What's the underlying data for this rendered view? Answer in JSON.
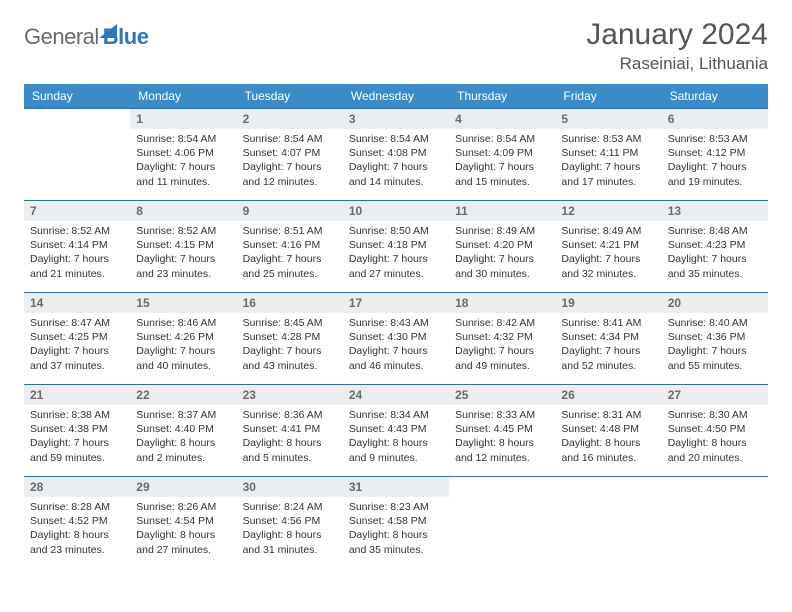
{
  "brand": {
    "word1": "General",
    "word2": "Blue"
  },
  "title": "January 2024",
  "location": "Raseiniai, Lithuania",
  "colors": {
    "header_bg": "#3b8bc9",
    "row_border": "#2f6fa8",
    "daynum_bg": "#ebeef1",
    "text": "#333333",
    "muted": "#6a6a6a",
    "brand_blue": "#2f77bb",
    "background": "#ffffff"
  },
  "typography": {
    "title_fontsize": 30,
    "location_fontsize": 17,
    "header_fontsize": 12,
    "daynum_fontsize": 12,
    "body_fontsize": 10.5
  },
  "columns": [
    "Sunday",
    "Monday",
    "Tuesday",
    "Wednesday",
    "Thursday",
    "Friday",
    "Saturday"
  ],
  "weeks": [
    [
      {
        "n": "",
        "sr": "",
        "ss": "",
        "d1": "",
        "d2": "",
        "empty": true
      },
      {
        "n": "1",
        "sr": "Sunrise: 8:54 AM",
        "ss": "Sunset: 4:06 PM",
        "d1": "Daylight: 7 hours",
        "d2": "and 11 minutes."
      },
      {
        "n": "2",
        "sr": "Sunrise: 8:54 AM",
        "ss": "Sunset: 4:07 PM",
        "d1": "Daylight: 7 hours",
        "d2": "and 12 minutes."
      },
      {
        "n": "3",
        "sr": "Sunrise: 8:54 AM",
        "ss": "Sunset: 4:08 PM",
        "d1": "Daylight: 7 hours",
        "d2": "and 14 minutes."
      },
      {
        "n": "4",
        "sr": "Sunrise: 8:54 AM",
        "ss": "Sunset: 4:09 PM",
        "d1": "Daylight: 7 hours",
        "d2": "and 15 minutes."
      },
      {
        "n": "5",
        "sr": "Sunrise: 8:53 AM",
        "ss": "Sunset: 4:11 PM",
        "d1": "Daylight: 7 hours",
        "d2": "and 17 minutes."
      },
      {
        "n": "6",
        "sr": "Sunrise: 8:53 AM",
        "ss": "Sunset: 4:12 PM",
        "d1": "Daylight: 7 hours",
        "d2": "and 19 minutes."
      }
    ],
    [
      {
        "n": "7",
        "sr": "Sunrise: 8:52 AM",
        "ss": "Sunset: 4:14 PM",
        "d1": "Daylight: 7 hours",
        "d2": "and 21 minutes."
      },
      {
        "n": "8",
        "sr": "Sunrise: 8:52 AM",
        "ss": "Sunset: 4:15 PM",
        "d1": "Daylight: 7 hours",
        "d2": "and 23 minutes."
      },
      {
        "n": "9",
        "sr": "Sunrise: 8:51 AM",
        "ss": "Sunset: 4:16 PM",
        "d1": "Daylight: 7 hours",
        "d2": "and 25 minutes."
      },
      {
        "n": "10",
        "sr": "Sunrise: 8:50 AM",
        "ss": "Sunset: 4:18 PM",
        "d1": "Daylight: 7 hours",
        "d2": "and 27 minutes."
      },
      {
        "n": "11",
        "sr": "Sunrise: 8:49 AM",
        "ss": "Sunset: 4:20 PM",
        "d1": "Daylight: 7 hours",
        "d2": "and 30 minutes."
      },
      {
        "n": "12",
        "sr": "Sunrise: 8:49 AM",
        "ss": "Sunset: 4:21 PM",
        "d1": "Daylight: 7 hours",
        "d2": "and 32 minutes."
      },
      {
        "n": "13",
        "sr": "Sunrise: 8:48 AM",
        "ss": "Sunset: 4:23 PM",
        "d1": "Daylight: 7 hours",
        "d2": "and 35 minutes."
      }
    ],
    [
      {
        "n": "14",
        "sr": "Sunrise: 8:47 AM",
        "ss": "Sunset: 4:25 PM",
        "d1": "Daylight: 7 hours",
        "d2": "and 37 minutes."
      },
      {
        "n": "15",
        "sr": "Sunrise: 8:46 AM",
        "ss": "Sunset: 4:26 PM",
        "d1": "Daylight: 7 hours",
        "d2": "and 40 minutes."
      },
      {
        "n": "16",
        "sr": "Sunrise: 8:45 AM",
        "ss": "Sunset: 4:28 PM",
        "d1": "Daylight: 7 hours",
        "d2": "and 43 minutes."
      },
      {
        "n": "17",
        "sr": "Sunrise: 8:43 AM",
        "ss": "Sunset: 4:30 PM",
        "d1": "Daylight: 7 hours",
        "d2": "and 46 minutes."
      },
      {
        "n": "18",
        "sr": "Sunrise: 8:42 AM",
        "ss": "Sunset: 4:32 PM",
        "d1": "Daylight: 7 hours",
        "d2": "and 49 minutes."
      },
      {
        "n": "19",
        "sr": "Sunrise: 8:41 AM",
        "ss": "Sunset: 4:34 PM",
        "d1": "Daylight: 7 hours",
        "d2": "and 52 minutes."
      },
      {
        "n": "20",
        "sr": "Sunrise: 8:40 AM",
        "ss": "Sunset: 4:36 PM",
        "d1": "Daylight: 7 hours",
        "d2": "and 55 minutes."
      }
    ],
    [
      {
        "n": "21",
        "sr": "Sunrise: 8:38 AM",
        "ss": "Sunset: 4:38 PM",
        "d1": "Daylight: 7 hours",
        "d2": "and 59 minutes."
      },
      {
        "n": "22",
        "sr": "Sunrise: 8:37 AM",
        "ss": "Sunset: 4:40 PM",
        "d1": "Daylight: 8 hours",
        "d2": "and 2 minutes."
      },
      {
        "n": "23",
        "sr": "Sunrise: 8:36 AM",
        "ss": "Sunset: 4:41 PM",
        "d1": "Daylight: 8 hours",
        "d2": "and 5 minutes."
      },
      {
        "n": "24",
        "sr": "Sunrise: 8:34 AM",
        "ss": "Sunset: 4:43 PM",
        "d1": "Daylight: 8 hours",
        "d2": "and 9 minutes."
      },
      {
        "n": "25",
        "sr": "Sunrise: 8:33 AM",
        "ss": "Sunset: 4:45 PM",
        "d1": "Daylight: 8 hours",
        "d2": "and 12 minutes."
      },
      {
        "n": "26",
        "sr": "Sunrise: 8:31 AM",
        "ss": "Sunset: 4:48 PM",
        "d1": "Daylight: 8 hours",
        "d2": "and 16 minutes."
      },
      {
        "n": "27",
        "sr": "Sunrise: 8:30 AM",
        "ss": "Sunset: 4:50 PM",
        "d1": "Daylight: 8 hours",
        "d2": "and 20 minutes."
      }
    ],
    [
      {
        "n": "28",
        "sr": "Sunrise: 8:28 AM",
        "ss": "Sunset: 4:52 PM",
        "d1": "Daylight: 8 hours",
        "d2": "and 23 minutes."
      },
      {
        "n": "29",
        "sr": "Sunrise: 8:26 AM",
        "ss": "Sunset: 4:54 PM",
        "d1": "Daylight: 8 hours",
        "d2": "and 27 minutes."
      },
      {
        "n": "30",
        "sr": "Sunrise: 8:24 AM",
        "ss": "Sunset: 4:56 PM",
        "d1": "Daylight: 8 hours",
        "d2": "and 31 minutes."
      },
      {
        "n": "31",
        "sr": "Sunrise: 8:23 AM",
        "ss": "Sunset: 4:58 PM",
        "d1": "Daylight: 8 hours",
        "d2": "and 35 minutes."
      },
      {
        "n": "",
        "sr": "",
        "ss": "",
        "d1": "",
        "d2": "",
        "empty": true
      },
      {
        "n": "",
        "sr": "",
        "ss": "",
        "d1": "",
        "d2": "",
        "empty": true
      },
      {
        "n": "",
        "sr": "",
        "ss": "",
        "d1": "",
        "d2": "",
        "empty": true
      }
    ]
  ]
}
